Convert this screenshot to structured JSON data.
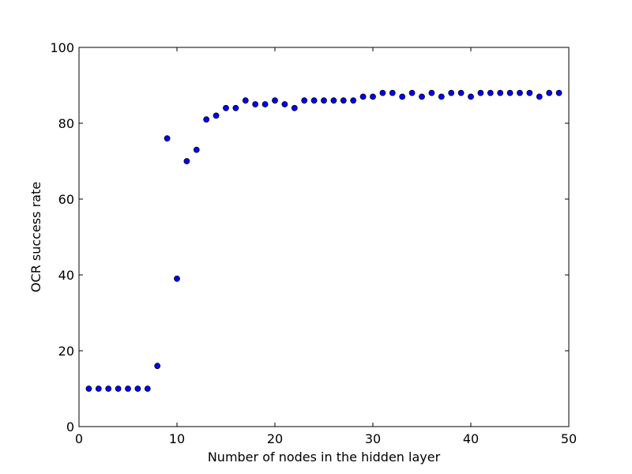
{
  "chart_data": {
    "type": "scatter",
    "title": "",
    "xlabel": "Number of nodes in the hidden layer",
    "ylabel": "OCR success rate",
    "xlim": [
      0,
      50
    ],
    "ylim": [
      0,
      100
    ],
    "xticks": [
      0,
      10,
      20,
      30,
      40,
      50
    ],
    "yticks": [
      0,
      20,
      40,
      60,
      80,
      100
    ],
    "grid": false,
    "legend": "none",
    "marker_color": "#0000ff",
    "marker_edge_color": "#000000",
    "x": [
      1,
      2,
      3,
      4,
      5,
      6,
      7,
      8,
      9,
      10,
      11,
      12,
      13,
      14,
      15,
      16,
      17,
      18,
      19,
      20,
      21,
      22,
      23,
      24,
      25,
      26,
      27,
      28,
      29,
      30,
      31,
      32,
      33,
      34,
      35,
      36,
      37,
      38,
      39,
      40,
      41,
      42,
      43,
      44,
      45,
      46,
      47,
      48,
      49
    ],
    "y": [
      10,
      10,
      10,
      10,
      10,
      10,
      10,
      16,
      76,
      39,
      70,
      73,
      81,
      82,
      84,
      84,
      86,
      85,
      85,
      86,
      85,
      84,
      86,
      86,
      86,
      86,
      86,
      86,
      87,
      87,
      88,
      88,
      87,
      88,
      87,
      88,
      87,
      88,
      88,
      87,
      88,
      88,
      88,
      88,
      88,
      88,
      87,
      88,
      88
    ]
  }
}
